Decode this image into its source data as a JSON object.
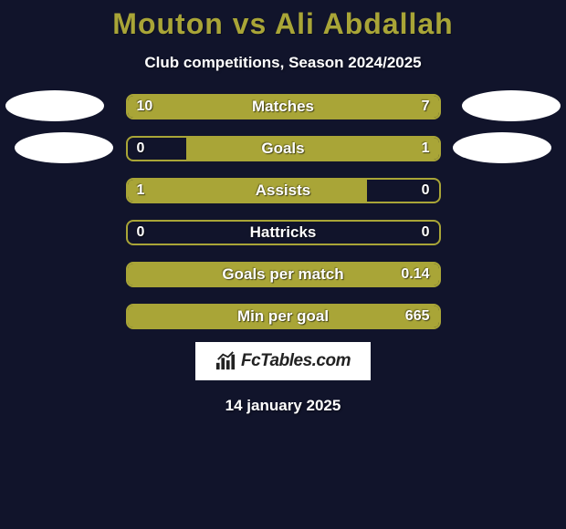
{
  "title": "Mouton vs Ali Abdallah",
  "subtitle": "Club competitions, Season 2024/2025",
  "date": "14 january 2025",
  "logo_text": "FcTables.com",
  "colors": {
    "background": "#11142b",
    "title": "#a9a537",
    "bar_fill": "#a9a537",
    "bar_border": "#a9a537",
    "text_white": "#ffffff"
  },
  "bars": [
    {
      "label": "Matches",
      "left_value": "10",
      "right_value": "7",
      "left_pct": 59,
      "right_pct": 41,
      "fill_side": "both"
    },
    {
      "label": "Goals",
      "left_value": "0",
      "right_value": "1",
      "left_pct": 19,
      "right_pct": 81,
      "fill_side": "right"
    },
    {
      "label": "Assists",
      "left_value": "1",
      "right_value": "0",
      "left_pct": 77,
      "right_pct": 23,
      "fill_side": "left"
    },
    {
      "label": "Hattricks",
      "left_value": "0",
      "right_value": "0",
      "left_pct": 0,
      "right_pct": 0,
      "fill_side": "none"
    },
    {
      "label": "Goals per match",
      "left_value": "",
      "right_value": "0.14",
      "left_pct": 0,
      "right_pct": 100,
      "fill_side": "right"
    },
    {
      "label": "Min per goal",
      "left_value": "",
      "right_value": "665",
      "left_pct": 0,
      "right_pct": 100,
      "fill_side": "right"
    }
  ]
}
